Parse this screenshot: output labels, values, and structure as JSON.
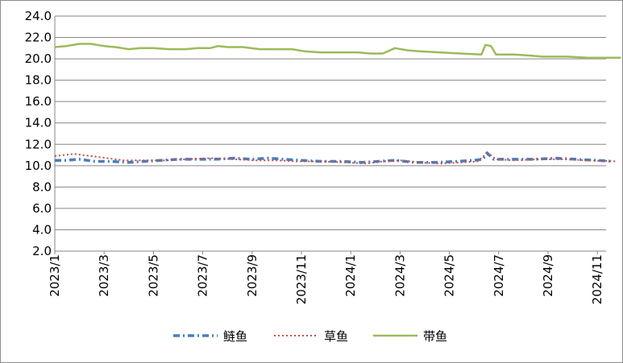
{
  "chart_data": {
    "type": "line",
    "title": "",
    "xlabel": "",
    "ylabel": "",
    "ylim": [
      2.0,
      24.0
    ],
    "yticks": [
      "2.0",
      "4.0",
      "6.0",
      "8.0",
      "10.0",
      "12.0",
      "14.0",
      "16.0",
      "18.0",
      "20.0",
      "22.0",
      "24.0"
    ],
    "xticks": [
      "2023/1",
      "2023/3",
      "2023/5",
      "2023/7",
      "2023/9",
      "2023/11",
      "2024/1",
      "2024/3",
      "2024/5",
      "2024/7",
      "2024/9",
      "2024/11"
    ],
    "x_range": [
      "2023/1",
      "2024/11+"
    ],
    "grid": {
      "horizontal": true,
      "vertical": false
    },
    "legend_position": "bottom",
    "series": [
      {
        "name": "鲢鱼",
        "color": "#4a7ebb",
        "style": "dash-dot",
        "points": [
          [
            "2023-01-01",
            10.5
          ],
          [
            "2023-01-15",
            10.5
          ],
          [
            "2023-02-01",
            10.6
          ],
          [
            "2023-02-20",
            10.4
          ],
          [
            "2023-03-10",
            10.4
          ],
          [
            "2023-04-01",
            10.3
          ],
          [
            "2023-04-20",
            10.4
          ],
          [
            "2023-05-10",
            10.5
          ],
          [
            "2023-06-01",
            10.6
          ],
          [
            "2023-06-25",
            10.6
          ],
          [
            "2023-07-15",
            10.6
          ],
          [
            "2023-08-10",
            10.7
          ],
          [
            "2023-09-01",
            10.6
          ],
          [
            "2023-09-20",
            10.7
          ],
          [
            "2023-10-10",
            10.6
          ],
          [
            "2023-11-01",
            10.5
          ],
          [
            "2023-11-25",
            10.4
          ],
          [
            "2023-12-20",
            10.4
          ],
          [
            "2024-01-15",
            10.3
          ],
          [
            "2024-02-05",
            10.4
          ],
          [
            "2024-02-25",
            10.5
          ],
          [
            "2024-03-20",
            10.3
          ],
          [
            "2024-04-15",
            10.3
          ],
          [
            "2024-05-10",
            10.4
          ],
          [
            "2024-06-01",
            10.5
          ],
          [
            "2024-06-12",
            10.6
          ],
          [
            "2024-06-17",
            11.2
          ],
          [
            "2024-06-25",
            10.6
          ],
          [
            "2024-07-20",
            10.6
          ],
          [
            "2024-08-15",
            10.6
          ],
          [
            "2024-09-10",
            10.7
          ],
          [
            "2024-10-05",
            10.6
          ],
          [
            "2024-10-30",
            10.5
          ],
          [
            "2024-11-20",
            10.4
          ]
        ]
      },
      {
        "name": "草鱼",
        "color": "#c0504d",
        "style": "dotted",
        "points": [
          [
            "2023-01-01",
            10.9
          ],
          [
            "2023-01-25",
            11.1
          ],
          [
            "2023-02-15",
            10.9
          ],
          [
            "2023-03-05",
            10.7
          ],
          [
            "2023-03-25",
            10.5
          ],
          [
            "2023-04-20",
            10.5
          ],
          [
            "2023-05-15",
            10.5
          ],
          [
            "2023-06-10",
            10.6
          ],
          [
            "2023-07-10",
            10.7
          ],
          [
            "2023-08-10",
            10.6
          ],
          [
            "2023-09-05",
            10.5
          ],
          [
            "2023-10-01",
            10.5
          ],
          [
            "2023-10-25",
            10.4
          ],
          [
            "2023-11-25",
            10.4
          ],
          [
            "2023-12-25",
            10.3
          ],
          [
            "2024-01-20",
            10.2
          ],
          [
            "2024-02-10",
            10.4
          ],
          [
            "2024-03-01",
            10.5
          ],
          [
            "2024-03-25",
            10.3
          ],
          [
            "2024-04-20",
            10.2
          ],
          [
            "2024-05-15",
            10.3
          ],
          [
            "2024-06-05",
            10.4
          ],
          [
            "2024-06-13",
            10.9
          ],
          [
            "2024-06-20",
            11.1
          ],
          [
            "2024-06-28",
            10.6
          ],
          [
            "2024-07-20",
            10.5
          ],
          [
            "2024-08-20",
            10.6
          ],
          [
            "2024-09-20",
            10.6
          ],
          [
            "2024-10-20",
            10.5
          ],
          [
            "2024-11-25",
            10.4
          ]
        ]
      },
      {
        "name": "带鱼",
        "color": "#9bbb59",
        "style": "solid",
        "points": [
          [
            "2023-01-01",
            21.1
          ],
          [
            "2023-01-15",
            21.2
          ],
          [
            "2023-02-01",
            21.4
          ],
          [
            "2023-02-15",
            21.4
          ],
          [
            "2023-03-01",
            21.2
          ],
          [
            "2023-03-15",
            21.1
          ],
          [
            "2023-04-01",
            20.9
          ],
          [
            "2023-04-15",
            21.0
          ],
          [
            "2023-05-01",
            21.0
          ],
          [
            "2023-05-20",
            20.9
          ],
          [
            "2023-06-10",
            20.9
          ],
          [
            "2023-06-25",
            21.0
          ],
          [
            "2023-07-10",
            21.0
          ],
          [
            "2023-07-20",
            21.2
          ],
          [
            "2023-08-01",
            21.1
          ],
          [
            "2023-08-20",
            21.1
          ],
          [
            "2023-09-10",
            20.9
          ],
          [
            "2023-10-01",
            20.9
          ],
          [
            "2023-10-20",
            20.9
          ],
          [
            "2023-11-05",
            20.7
          ],
          [
            "2023-11-25",
            20.6
          ],
          [
            "2023-12-20",
            20.6
          ],
          [
            "2024-01-10",
            20.6
          ],
          [
            "2024-01-25",
            20.5
          ],
          [
            "2024-02-10",
            20.5
          ],
          [
            "2024-02-25",
            21.0
          ],
          [
            "2024-03-10",
            20.8
          ],
          [
            "2024-03-25",
            20.7
          ],
          [
            "2024-04-20",
            20.6
          ],
          [
            "2024-05-15",
            20.5
          ],
          [
            "2024-06-10",
            20.4
          ],
          [
            "2024-06-15",
            21.3
          ],
          [
            "2024-06-22",
            21.2
          ],
          [
            "2024-06-28",
            20.4
          ],
          [
            "2024-07-20",
            20.4
          ],
          [
            "2024-08-10",
            20.3
          ],
          [
            "2024-08-25",
            20.2
          ],
          [
            "2024-09-10",
            20.2
          ],
          [
            "2024-09-25",
            20.2
          ],
          [
            "2024-10-20",
            20.1
          ],
          [
            "2024-11-10",
            20.1
          ],
          [
            "2024-11-30",
            20.1
          ]
        ]
      }
    ]
  }
}
